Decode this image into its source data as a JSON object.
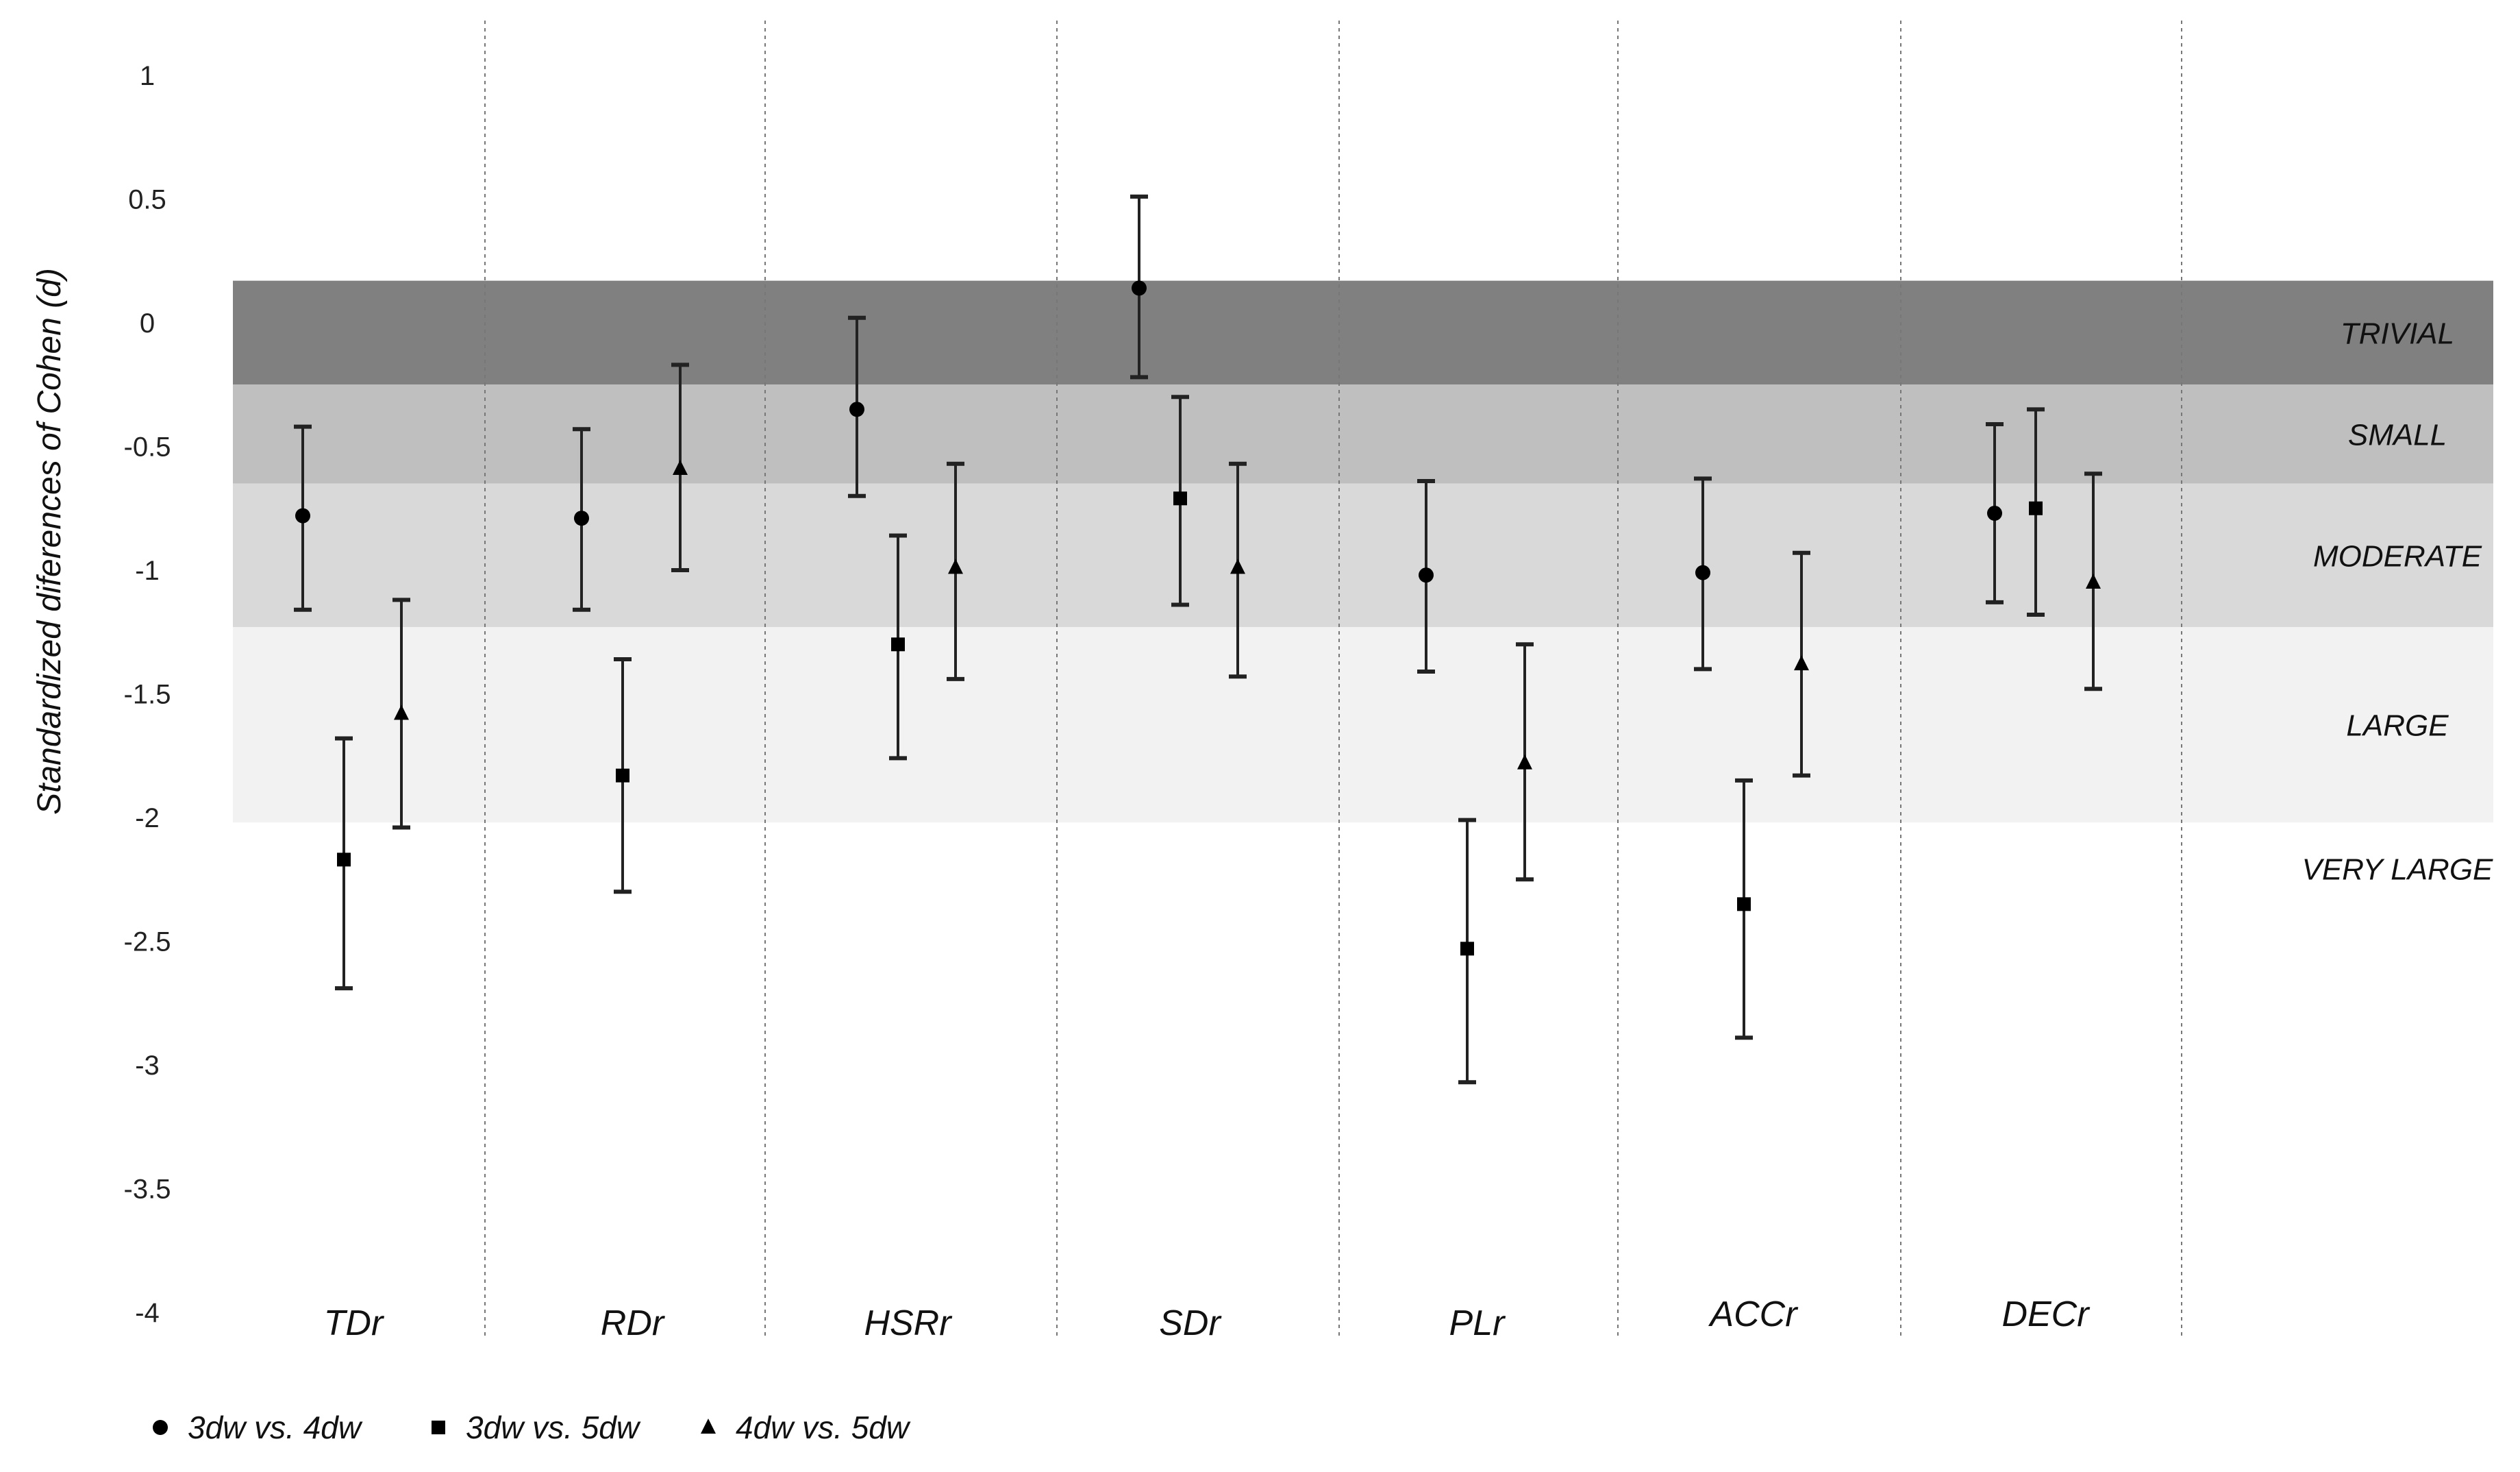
{
  "chart_data": {
    "type": "scatter",
    "ylabel": "Standardized diferences of Cohen (d)",
    "xlabel": "",
    "title": "",
    "ylim": [
      -4,
      1
    ],
    "yticks": [
      1,
      0.5,
      0,
      -0.5,
      -1,
      -1.5,
      -2,
      -2.5,
      -3,
      -3.5,
      -4
    ],
    "ytick_labels": [
      "1",
      "0.5",
      "0",
      "-0.5",
      "-1",
      "-1.5",
      "-2",
      "-2.5",
      "-3",
      "-3.5",
      "-4"
    ],
    "grid": "vertical dotted separators between categories",
    "legend_position": "bottom-left",
    "categories": [
      "TDr",
      "RDr",
      "HSRr",
      "SDr",
      "PLr",
      "ACCr",
      "DECr"
    ],
    "bands": [
      {
        "label": "TRIVIAL",
        "from": 0.17,
        "to": -0.25,
        "color": "#808080"
      },
      {
        "label": "SMALL",
        "from": -0.25,
        "to": -0.65,
        "color": "#bfbfbf"
      },
      {
        "label": "MODERATE",
        "from": -0.65,
        "to": -1.23,
        "color": "#d9d9d9"
      },
      {
        "label": "LARGE",
        "from": -1.23,
        "to": -2.02,
        "color": "#f2f2f2"
      },
      {
        "label": "VERY LARGE",
        "from": -2.02,
        "to": -4,
        "color": "#ffffff"
      }
    ],
    "series": [
      {
        "name": "3dw vs. 4dw",
        "marker": "circle",
        "values": [
          -0.78,
          -0.79,
          -0.35,
          0.14,
          -1.02,
          -1.01,
          -0.77
        ],
        "lower": [
          -1.16,
          -1.16,
          -0.7,
          -0.22,
          -1.41,
          -1.4,
          -1.13
        ],
        "upper": [
          -0.42,
          -0.43,
          0.02,
          0.51,
          -0.64,
          -0.63,
          -0.41
        ]
      },
      {
        "name": "3dw vs. 5dw",
        "marker": "square",
        "values": [
          -2.17,
          -1.83,
          -1.3,
          -0.71,
          -2.53,
          -2.35,
          -0.75
        ],
        "lower": [
          -2.69,
          -2.3,
          -1.76,
          -1.14,
          -3.07,
          -2.89,
          -1.18
        ],
        "upper": [
          -1.68,
          -1.36,
          -0.86,
          -0.3,
          -2.01,
          -1.85,
          -0.35
        ]
      },
      {
        "name": "4dw vs. 5dw",
        "marker": "triangle",
        "values": [
          -1.58,
          -0.59,
          -0.99,
          -0.99,
          -1.78,
          -1.38,
          -1.05
        ],
        "lower": [
          -2.04,
          -1.0,
          -1.44,
          -1.43,
          -2.25,
          -1.83,
          -1.48
        ],
        "upper": [
          -1.12,
          -0.17,
          -0.57,
          -0.57,
          -1.3,
          -0.93,
          -0.61
        ]
      }
    ]
  }
}
